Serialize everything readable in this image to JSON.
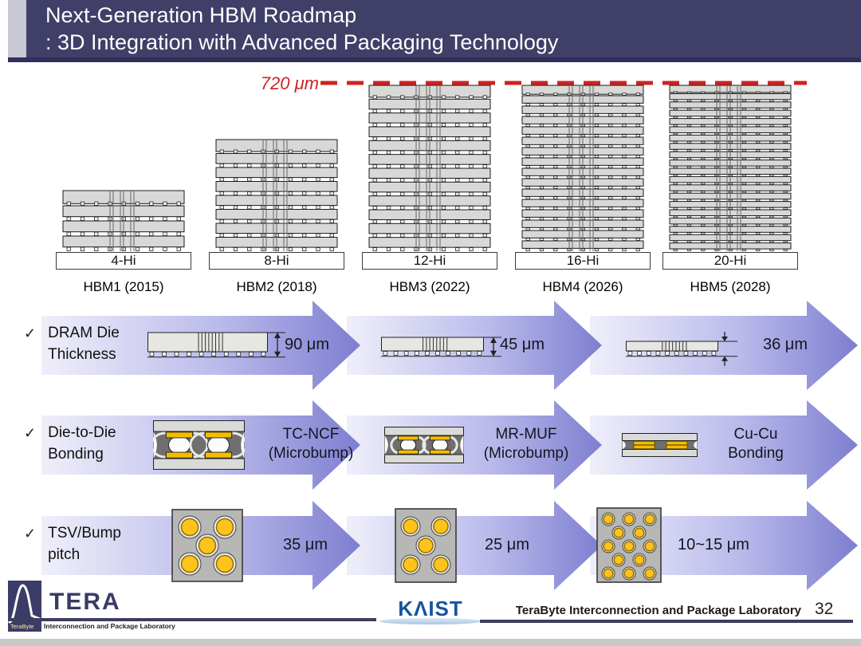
{
  "slide": {
    "title_line1": "Next-Generation HBM Roadmap",
    "title_line2": ": 3D Integration with Advanced Packaging Technology",
    "height_limit_label": "720 μm"
  },
  "stacks": [
    {
      "hi": "4-Hi",
      "gen": "HBM1 (2015)",
      "layers": 4
    },
    {
      "hi": "8-Hi",
      "gen": "HBM2 (2018)",
      "layers": 8
    },
    {
      "hi": "12-Hi",
      "gen": "HBM3 (2022)",
      "layers": 12
    },
    {
      "hi": "16-Hi",
      "gen": "HBM4 (2026)",
      "layers": 16
    },
    {
      "hi": "20-Hi",
      "gen": "HBM5 (2028)",
      "layers": 20
    }
  ],
  "rows": [
    {
      "check": "✓",
      "label_line1": "DRAM Die",
      "label_line2": "Thickness",
      "items": [
        {
          "line1": "90 μm",
          "diagram": "thinned-dram-die-cross-section"
        },
        {
          "line1": "45 μm",
          "diagram": "thinned-dram-die-cross-section"
        },
        {
          "line1": "36 μm",
          "diagram": "thinned-dram-die-cross-section"
        }
      ]
    },
    {
      "check": "✓",
      "label_line1": "Die-to-Die",
      "label_line2": "Bonding",
      "items": [
        {
          "line1": "TC-NCF",
          "line2": "(Microbump)",
          "diagram": "tc-ncf-microbump-joint"
        },
        {
          "line1": "MR-MUF",
          "line2": "(Microbump)",
          "diagram": "mr-muf-microbump-joint"
        },
        {
          "line1": "Cu-Cu",
          "line2": "Bonding",
          "diagram": "cu-cu-direct-bond-joint"
        }
      ]
    },
    {
      "check": "✓",
      "label_line1": "TSV/Bump",
      "label_line2": "pitch",
      "items": [
        {
          "line1": "35 μm",
          "diagram": "bump-grid-coarse"
        },
        {
          "line1": "25 μm",
          "diagram": "bump-grid-medium"
        },
        {
          "line1": "10~15 μm",
          "diagram": "bump-grid-fine"
        }
      ]
    }
  ],
  "footer": {
    "tera_logo_text": "TERA",
    "tera_logo_inside": "TeraByte",
    "tera_logo_sub": "Interconnection and Package Laboratory",
    "kaist_logo_text": "KΛIST",
    "lab_name": "TeraByte Interconnection and Package Laboratory",
    "page_number": "32"
  },
  "colors": {
    "header_navy": "#3f3f68",
    "header_accent": "#c8c8d5",
    "limit_red": "#cf2222",
    "arrow_light": "#efeffa",
    "arrow_dark": "#7e7ed0",
    "die_gray": "#d8d8d6",
    "underfill_gray": "#6f6f6f",
    "pad_gold": "#f5bd00",
    "bump_gold": "#fec31c"
  }
}
